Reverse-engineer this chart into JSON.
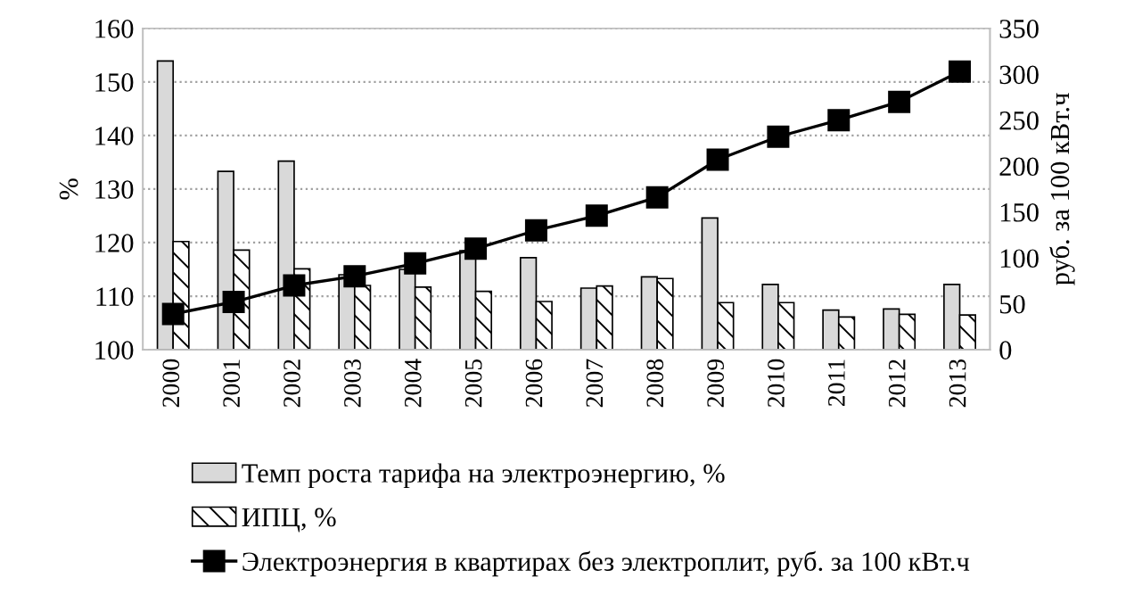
{
  "chart_data": {
    "type": "bar",
    "ylabel": "%",
    "y2label": "руб. за 100 кВт.ч",
    "categories": [
      "2000",
      "2001",
      "2002",
      "2003",
      "2004",
      "2005",
      "2006",
      "2007",
      "2008",
      "2009",
      "2010",
      "2011",
      "2012",
      "2013"
    ],
    "series": [
      {
        "name": "Темп роста тарифа на электроэнергию, %",
        "color": "#d9d9d9",
        "values": [
          153.9,
          133.3,
          135.2,
          114,
          115,
          118.5,
          117.2,
          111.5,
          113.6,
          124.6,
          112.2,
          107.4,
          107.6,
          112.2
        ]
      },
      {
        "name": "ИПЦ, %",
        "color": "#000000",
        "values": [
          120.2,
          118.6,
          115.1,
          112,
          111.7,
          110.9,
          109,
          111.9,
          113.3,
          108.8,
          108.8,
          106.1,
          106.6,
          106.5
        ]
      },
      {
        "name": "Электроэнергия в квартирах без электроплит, руб. за 100 кВт.ч",
        "type": "line",
        "axis": "y2",
        "color": "#000000",
        "marker": "square",
        "values": [
          39,
          52,
          70,
          80,
          94,
          110,
          130,
          146,
          166,
          207,
          232,
          250,
          270,
          303
        ]
      }
    ],
    "ylim": [
      100,
      160
    ],
    "yticks": [
      100,
      110,
      120,
      130,
      140,
      150,
      160
    ],
    "y2lim": [
      0,
      350
    ],
    "y2ticks": [
      0,
      50,
      100,
      150,
      200,
      250,
      300,
      350
    ],
    "grid": "y",
    "legend": "bottom"
  }
}
